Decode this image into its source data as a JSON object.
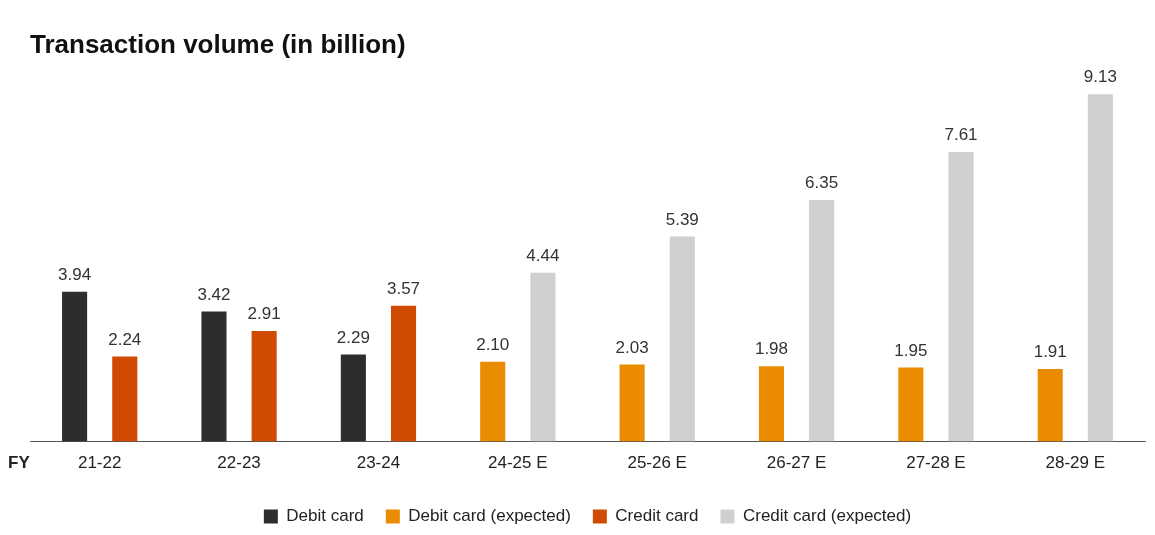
{
  "chart_data": {
    "type": "bar",
    "title": "Transaction volume (in billion)",
    "xlabel": "FY",
    "categories": [
      "21-22",
      "22-23",
      "23-24",
      "24-25 E",
      "25-26 E",
      "26-27 E",
      "27-28 E",
      "28-29 E"
    ],
    "series": [
      {
        "name": "Debit card",
        "color": "#2d2d2d",
        "values": [
          3.94,
          3.42,
          2.29,
          null,
          null,
          null,
          null,
          null
        ],
        "value_labels": [
          "3.94",
          "3.42",
          "2.29",
          null,
          null,
          null,
          null,
          null
        ]
      },
      {
        "name": "Debit card (expected)",
        "color": "#eb8c00",
        "values": [
          null,
          null,
          null,
          2.1,
          2.03,
          1.98,
          1.95,
          1.91
        ],
        "value_labels": [
          null,
          null,
          null,
          "2.10",
          "2.03",
          "1.98",
          "1.95",
          "1.91"
        ]
      },
      {
        "name": "Credit card",
        "color": "#d04a02",
        "values": [
          2.24,
          2.91,
          3.57,
          null,
          null,
          null,
          null,
          null
        ],
        "value_labels": [
          "2.24",
          "2.91",
          "3.57",
          null,
          null,
          null,
          null,
          null
        ]
      },
      {
        "name": "Credit card (expected)",
        "color": "#d1d0d0",
        "values": [
          null,
          null,
          null,
          4.44,
          5.39,
          6.35,
          7.61,
          9.13
        ],
        "value_labels": [
          null,
          null,
          null,
          "4.44",
          "5.39",
          "6.35",
          "7.61",
          "9.13"
        ]
      }
    ],
    "grid": false,
    "legend": "bottom"
  }
}
